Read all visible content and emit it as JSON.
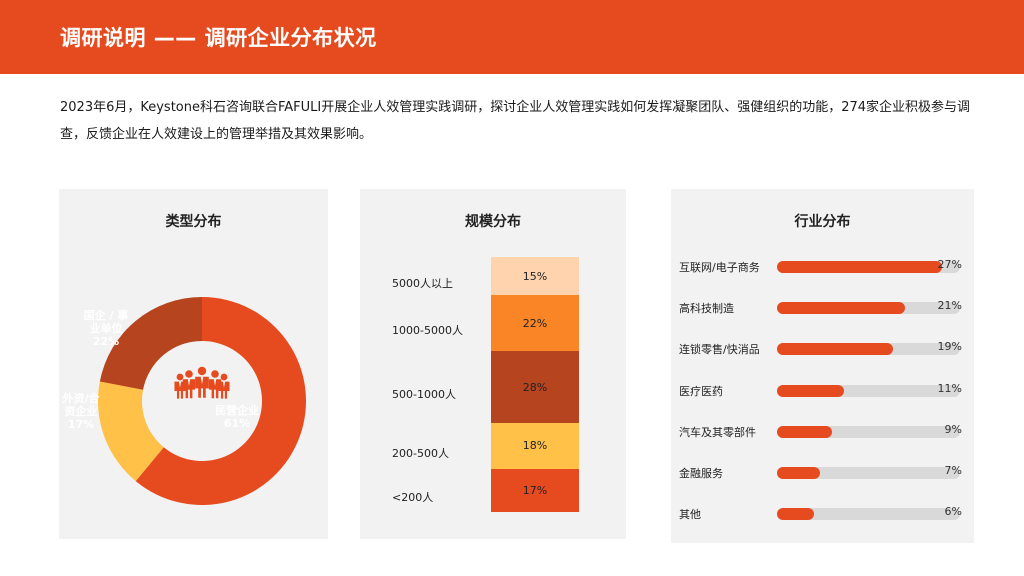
{
  "header": {
    "title": "调研说明 —— 调研企业分布状况"
  },
  "intro": "2023年6月，Keystone科石咨询联合FAFULI开展企业人效管理实践调研，探讨企业人效管理实践如何发挥凝聚团队、强健组织的功能，274家企业积极参与调查，反馈企业在人效建设上的管理举措及其效果影响。",
  "colors": {
    "accent": "#E64A1F",
    "panel_bg": "#F2F2F2",
    "track": "#D9D9D9"
  },
  "chart_data": [
    {
      "type": "pie",
      "title": "类型分布",
      "center_icon": "people-group-icon",
      "slices": [
        {
          "label": "民营企业",
          "value": 61,
          "display": "61%",
          "color": "#E64A1F",
          "label_color": "#ffffff"
        },
        {
          "label": "外资/合资企业",
          "value": 17,
          "display": "17%",
          "color": "#FFC148",
          "label_color": "#ffffff"
        },
        {
          "label": "国企 / 事业单位",
          "value": 22,
          "display": "22%",
          "color": "#B5441F",
          "label_color": "#ffffff"
        }
      ]
    },
    {
      "type": "bar",
      "stacked": true,
      "title": "规模分布",
      "categories": [
        "5000人以上",
        "1000-5000人",
        "500-1000人",
        "200-500人",
        "<200人"
      ],
      "values": [
        15,
        22,
        28,
        18,
        17
      ],
      "value_labels": [
        "15%",
        "22%",
        "28%",
        "18%",
        "17%"
      ],
      "colors": [
        "#FFD3AE",
        "#FA8526",
        "#B5441F",
        "#FFC148",
        "#E64A1F"
      ]
    },
    {
      "type": "bar",
      "orientation": "horizontal",
      "title": "行业分布",
      "categories": [
        "互联网/电子商务",
        "高科技制造",
        "连锁零售/快消品",
        "医疗医药",
        "汽车及其零部件",
        "金融服务",
        "其他"
      ],
      "values": [
        27,
        21,
        19,
        11,
        9,
        7,
        6
      ],
      "value_labels": [
        "27%",
        "21%",
        "19%",
        "11%",
        "9%",
        "7%",
        "6%"
      ],
      "xlim": [
        0,
        30
      ]
    }
  ]
}
